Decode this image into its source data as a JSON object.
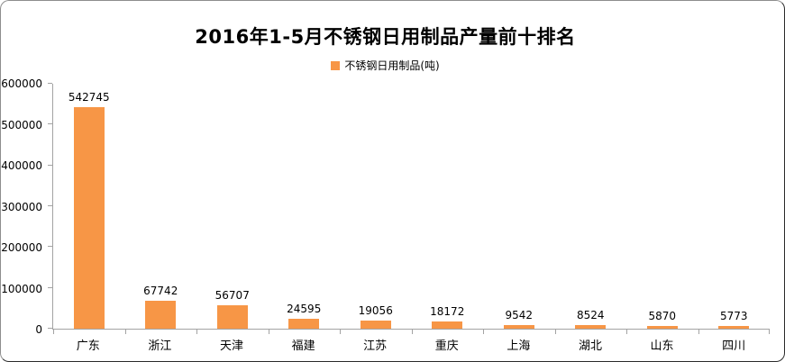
{
  "title": "2016年1-5月不锈钢日用制品产量前十排名",
  "legend": {
    "label": "不锈钢日用制品(吨)"
  },
  "colors": {
    "bar": "#F79646",
    "axis": "#a3a3a3",
    "text": "#000000",
    "background": "#ffffff"
  },
  "chart_data": {
    "type": "bar",
    "title": "2016年1-5月不锈钢日用制品产量前十排名",
    "legend": [
      "不锈钢日用制品(吨)"
    ],
    "legend_position": "top",
    "categories": [
      "广东",
      "浙江",
      "天津",
      "福建",
      "江苏",
      "重庆",
      "上海",
      "湖北",
      "山东",
      "四川"
    ],
    "values": [
      542745,
      67742,
      56707,
      24595,
      19056,
      18172,
      9542,
      8524,
      5870,
      5773
    ],
    "xlabel": "",
    "ylabel": "",
    "ylim": [
      0,
      600000
    ],
    "yticks": [
      0,
      100000,
      200000,
      300000,
      400000,
      500000,
      600000
    ],
    "grid": false,
    "data_labels": true,
    "bar_color": "#F79646"
  }
}
